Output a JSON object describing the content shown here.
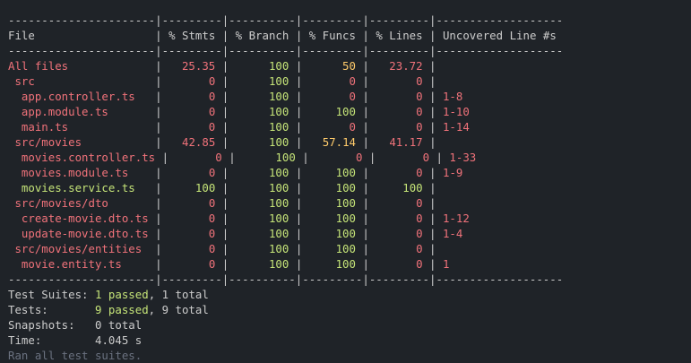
{
  "table": {
    "header": [
      "File",
      "% Stmts",
      "% Branch",
      "% Funcs",
      "% Lines",
      "Uncovered Line #s"
    ],
    "rows": [
      {
        "name": "All files",
        "stmts": 25.35,
        "branch": 100,
        "funcs": 50,
        "lines": 23.72,
        "uncovered": null
      },
      {
        "name": " src",
        "stmts": 0,
        "branch": 100,
        "funcs": 0,
        "lines": 0,
        "uncovered": null
      },
      {
        "name": "  app.controller.ts",
        "stmts": 0,
        "branch": 100,
        "funcs": 0,
        "lines": 0,
        "uncovered": "1-8"
      },
      {
        "name": "  app.module.ts",
        "stmts": 0,
        "branch": 100,
        "funcs": 100,
        "lines": 0,
        "uncovered": "1-10"
      },
      {
        "name": "  main.ts",
        "stmts": 0,
        "branch": 100,
        "funcs": 0,
        "lines": 0,
        "uncovered": "1-14"
      },
      {
        "name": " src/movies",
        "stmts": 42.85,
        "branch": 100,
        "funcs": 57.14,
        "lines": 41.17,
        "uncovered": null
      },
      {
        "name": "  movies.controller.ts",
        "stmts": 0,
        "branch": 100,
        "funcs": 0,
        "lines": 0,
        "uncovered": "1-33"
      },
      {
        "name": "  movies.module.ts",
        "stmts": 0,
        "branch": 100,
        "funcs": 100,
        "lines": 0,
        "uncovered": "1-9"
      },
      {
        "name": "  movies.service.ts",
        "stmts": 100,
        "branch": 100,
        "funcs": 100,
        "lines": 100,
        "uncovered": null
      },
      {
        "name": " src/movies/dto",
        "stmts": 0,
        "branch": 100,
        "funcs": 100,
        "lines": 0,
        "uncovered": null
      },
      {
        "name": "  create-movie.dto.ts",
        "stmts": 0,
        "branch": 100,
        "funcs": 100,
        "lines": 0,
        "uncovered": "1-12"
      },
      {
        "name": "  update-movie.dto.ts",
        "stmts": 0,
        "branch": 100,
        "funcs": 100,
        "lines": 0,
        "uncovered": "1-4"
      },
      {
        "name": " src/movies/entities",
        "stmts": 0,
        "branch": 100,
        "funcs": 100,
        "lines": 0,
        "uncovered": null
      },
      {
        "name": "  movie.entity.ts",
        "stmts": 0,
        "branch": 100,
        "funcs": 100,
        "lines": 0,
        "uncovered": "1"
      }
    ]
  },
  "summary": [
    {
      "label": "Test Suites:",
      "passed": "1 passed",
      "total": "1 total"
    },
    {
      "label": "Tests:",
      "passed": "9 passed",
      "total": "9 total"
    },
    {
      "label": "Snapshots:",
      "passed": null,
      "total": "0 total"
    },
    {
      "label": "Time:",
      "passed": null,
      "total": "4.045 s"
    }
  ],
  "footer": "Ran all test suites."
}
